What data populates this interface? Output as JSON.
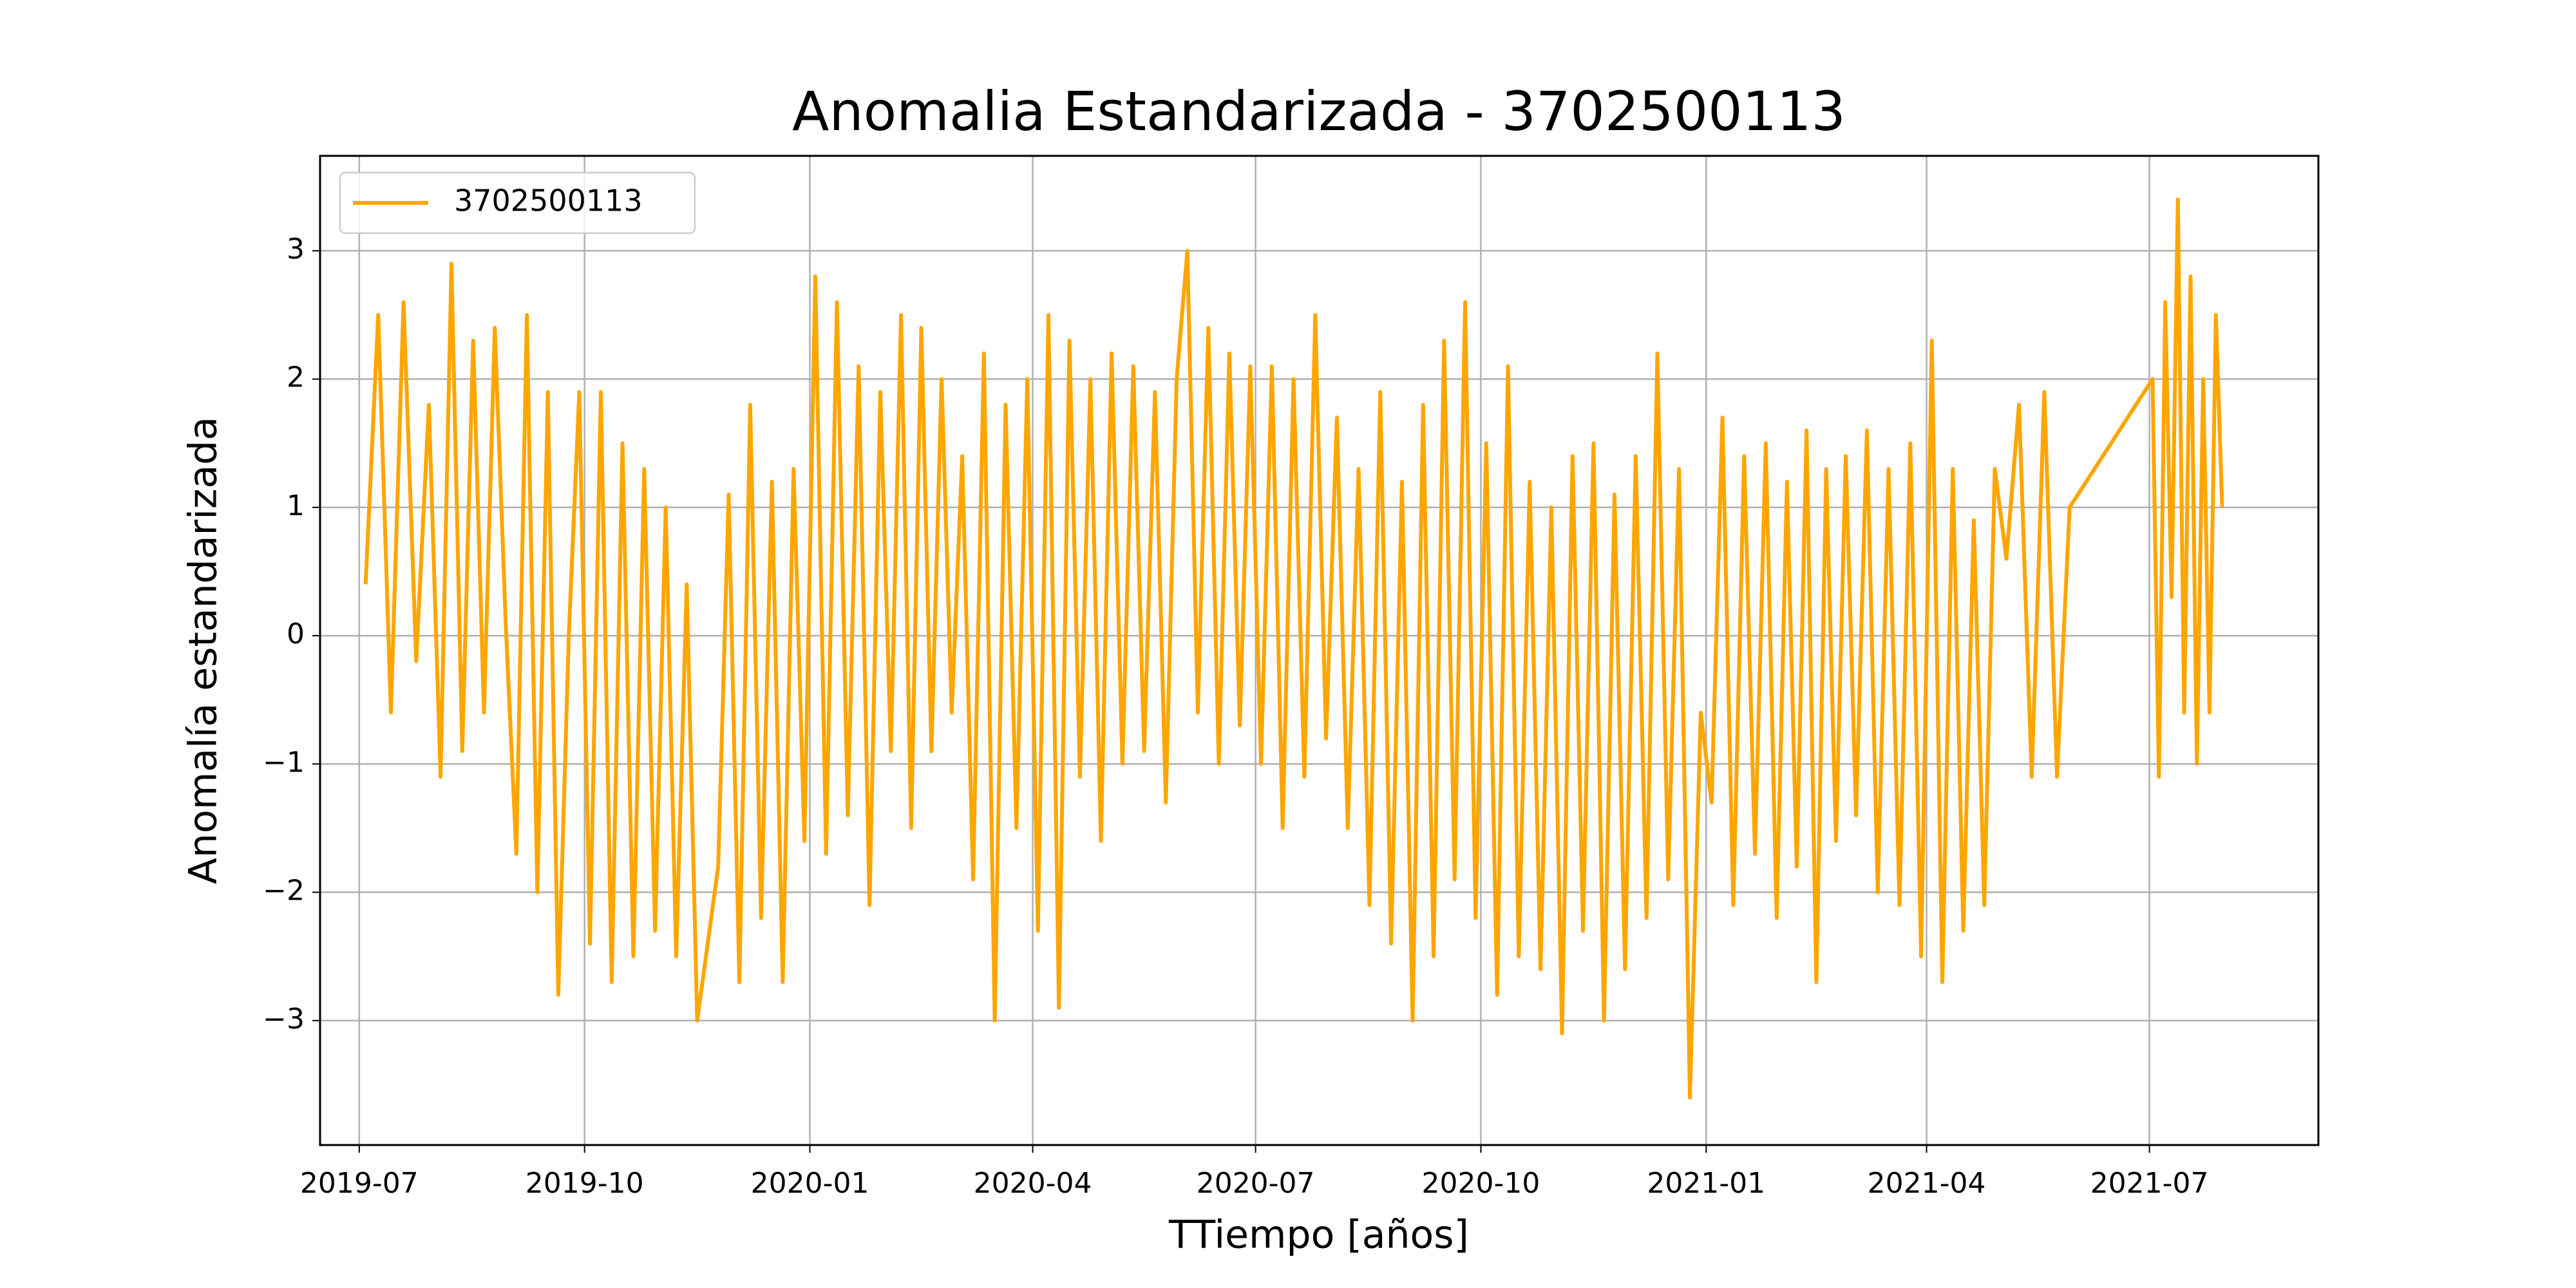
{
  "chart_data": {
    "type": "line",
    "title": "Anomalia Estandarizada - 3702500113",
    "xlabel": "TTiempo [años]",
    "ylabel": "Anomalía estandarizada",
    "x": [
      "2019-07",
      "2019-07",
      "2019-07",
      "2019-07",
      "2019-07",
      "2019-07",
      "2019-08",
      "2019-08",
      "2019-08",
      "2019-08",
      "2019-08",
      "2019-08",
      "2019-08",
      "2019-09",
      "2019-09",
      "2019-09",
      "2019-09",
      "2019-09",
      "2019-09",
      "2019-09",
      "2019-10",
      "2019-10",
      "2019-10",
      "2019-10",
      "2019-10",
      "2019-10",
      "2019-10",
      "2019-11",
      "2019-11",
      "2019-11",
      "2019-11",
      "2019-11",
      "2019-11",
      "2019-11",
      "2019-12",
      "2019-12",
      "2019-12",
      "2019-12",
      "2019-12",
      "2019-12",
      "2019-12",
      "2020-01",
      "2020-01",
      "2020-01",
      "2020-01",
      "2020-01",
      "2020-01",
      "2020-01",
      "2020-02",
      "2020-02",
      "2020-02",
      "2020-02",
      "2020-02",
      "2020-02",
      "2020-02",
      "2020-03",
      "2020-03",
      "2020-03",
      "2020-03",
      "2020-03",
      "2020-03",
      "2020-03",
      "2020-04",
      "2020-04",
      "2020-04",
      "2020-04",
      "2020-04",
      "2020-04",
      "2020-04",
      "2020-05",
      "2020-05",
      "2020-05",
      "2020-05",
      "2020-05",
      "2020-05",
      "2020-05",
      "2020-06",
      "2020-06",
      "2020-06",
      "2020-06",
      "2020-06",
      "2020-06",
      "2020-06",
      "2020-07",
      "2020-07",
      "2020-07",
      "2020-07",
      "2020-07",
      "2020-07",
      "2020-07",
      "2020-08",
      "2020-08",
      "2020-08",
      "2020-08",
      "2020-08",
      "2020-08",
      "2020-08",
      "2020-09",
      "2020-09",
      "2020-09",
      "2020-09",
      "2020-09",
      "2020-09",
      "2020-09",
      "2020-10",
      "2020-10",
      "2020-10",
      "2020-10",
      "2020-10",
      "2020-10",
      "2020-10",
      "2020-11",
      "2020-11",
      "2020-11",
      "2020-11",
      "2020-11",
      "2020-11",
      "2020-11",
      "2020-12",
      "2020-12",
      "2020-12",
      "2020-12",
      "2020-12",
      "2020-12",
      "2020-12",
      "2021-01",
      "2021-01",
      "2021-01",
      "2021-01",
      "2021-01",
      "2021-01",
      "2021-01",
      "2021-02",
      "2021-02",
      "2021-02",
      "2021-02",
      "2021-02",
      "2021-02",
      "2021-02",
      "2021-03",
      "2021-03",
      "2021-03",
      "2021-03",
      "2021-03",
      "2021-03",
      "2021-03",
      "2021-04",
      "2021-04",
      "2021-04",
      "2021-04",
      "2021-04",
      "2021-04",
      "2021-04",
      "2021-05",
      "2021-05",
      "2021-05",
      "2021-05",
      "2021-05",
      "2021-05",
      "2021-07",
      "2021-07",
      "2021-07",
      "2021-07",
      "2021-07",
      "2021-07",
      "2021-07",
      "2021-07",
      "2021-07",
      "2021-07",
      "2021-07",
      "2021-07"
    ],
    "series": [
      {
        "name": "3702500113",
        "color": "#ffa500",
        "values": [
          0.4,
          2.5,
          -0.6,
          2.6,
          -0.2,
          1.8,
          -1.1,
          2.9,
          -0.9,
          2.3,
          -0.6,
          2.4,
          0.1,
          -1.7,
          2.5,
          -2.0,
          1.9,
          -2.8,
          0.0,
          1.9,
          -2.4,
          1.9,
          -2.7,
          1.5,
          -2.5,
          1.3,
          -2.3,
          1.0,
          -2.5,
          0.4,
          -3.0,
          -2.4,
          -1.8,
          1.1,
          -2.7,
          1.8,
          -2.2,
          1.2,
          -2.7,
          1.3,
          -1.6,
          2.8,
          -1.7,
          2.6,
          -1.4,
          2.1,
          -2.1,
          1.9,
          -0.9,
          2.5,
          -1.5,
          2.4,
          -0.9,
          2.0,
          -0.6,
          1.4,
          -1.9,
          2.2,
          -3.0,
          1.8,
          -1.5,
          2.0,
          -2.3,
          2.5,
          -2.9,
          2.3,
          -1.1,
          2.0,
          -1.6,
          2.2,
          -1.0,
          2.1,
          -0.9,
          1.9,
          -1.3,
          2.0,
          3.0,
          -0.6,
          2.4,
          -1.0,
          2.2,
          -0.7,
          2.1,
          -1.0,
          2.1,
          -1.5,
          2.0,
          -1.1,
          2.5,
          -0.8,
          1.7,
          -1.5,
          1.3,
          -2.1,
          1.9,
          -2.4,
          1.2,
          -3.0,
          1.8,
          -2.5,
          2.3,
          -1.9,
          2.6,
          -2.2,
          1.5,
          -2.8,
          2.1,
          -2.5,
          1.2,
          -2.6,
          1.0,
          -3.1,
          1.4,
          -2.3,
          1.5,
          -3.0,
          1.1,
          -2.6,
          1.4,
          -2.2,
          2.2,
          -1.9,
          1.3,
          -3.6,
          -0.6,
          -1.3,
          1.7,
          -2.1,
          1.4,
          -1.7,
          1.5,
          -2.2,
          1.2,
          -1.8,
          1.6,
          -2.7,
          1.3,
          -1.6,
          1.4,
          -1.4,
          1.6,
          -2.0,
          1.3,
          -2.1,
          1.5,
          -2.5,
          2.3,
          -2.7,
          1.3,
          -2.3,
          0.9,
          -2.1,
          1.3,
          0.6,
          1.8,
          -1.1,
          1.9,
          -1.1,
          1.0,
          2.0,
          -1.1,
          2.6,
          0.3,
          3.4,
          -0.6,
          2.8,
          -1.0,
          2.0,
          -0.6,
          2.5,
          1.0
        ]
      }
    ],
    "xlim": [
      "2019-06-15",
      "2021-09-08"
    ],
    "xticks": [
      "2019-07",
      "2019-10",
      "2020-01",
      "2020-04",
      "2020-07",
      "2020-10",
      "2021-01",
      "2021-04",
      "2021-07"
    ],
    "ylim": [
      -3.97,
      3.74
    ],
    "yticks": [
      {
        "value": -3,
        "label": "−3"
      },
      {
        "value": -2,
        "label": "−2"
      },
      {
        "value": -1,
        "label": "−1"
      },
      0,
      1,
      2,
      3
    ],
    "grid": true,
    "legend": "upper-left"
  }
}
